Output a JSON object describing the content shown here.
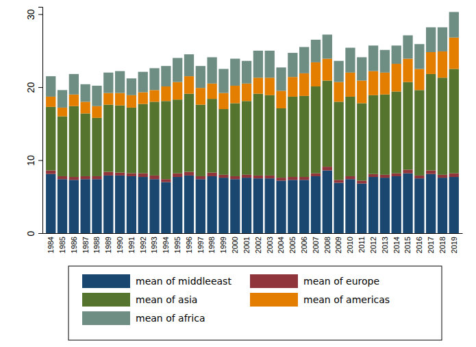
{
  "chart_data": {
    "type": "bar",
    "stacked": true,
    "grid": false,
    "legend": "bottom",
    "categories": [
      "1984",
      "1985",
      "1986",
      "1987",
      "1988",
      "1989",
      "1990",
      "1991",
      "1992",
      "1993",
      "1994",
      "1995",
      "1996",
      "1997",
      "1998",
      "1999",
      "2000",
      "2001",
      "2002",
      "2003",
      "2004",
      "2005",
      "2006",
      "2007",
      "2008",
      "2009",
      "2010",
      "2011",
      "2012",
      "2013",
      "2014",
      "2015",
      "2016",
      "2017",
      "2018",
      "2019"
    ],
    "ylim": [
      0,
      31
    ],
    "yticks": [
      0,
      10,
      20,
      30
    ],
    "series": [
      {
        "name": "mean of middleeast",
        "color": "#1a476f",
        "values": [
          8.1,
          7.4,
          7.3,
          7.4,
          7.4,
          7.9,
          7.9,
          7.8,
          7.7,
          7.4,
          7.0,
          7.7,
          7.9,
          7.4,
          7.8,
          7.6,
          7.4,
          7.6,
          7.5,
          7.5,
          7.2,
          7.3,
          7.3,
          7.8,
          8.6,
          6.9,
          7.4,
          6.8,
          7.7,
          7.6,
          7.8,
          8.2,
          7.5,
          8.1,
          7.6,
          7.7
        ]
      },
      {
        "name": "mean of europe",
        "color": "#90353b",
        "values": [
          0.5,
          0.4,
          0.4,
          0.4,
          0.4,
          0.5,
          0.4,
          0.4,
          0.5,
          0.5,
          0.4,
          0.5,
          0.5,
          0.4,
          0.5,
          0.4,
          0.4,
          0.4,
          0.4,
          0.4,
          0.4,
          0.4,
          0.4,
          0.4,
          0.5,
          0.4,
          0.4,
          0.4,
          0.4,
          0.4,
          0.4,
          0.5,
          0.4,
          0.5,
          0.4,
          0.5
        ]
      },
      {
        "name": "mean of asia",
        "color": "#55752f",
        "values": [
          8.7,
          8.2,
          9.7,
          8.6,
          8.0,
          9.2,
          9.2,
          9.0,
          9.5,
          10.1,
          10.7,
          10.1,
          10.7,
          9.8,
          10.1,
          9.0,
          10.0,
          10.1,
          11.2,
          11.0,
          9.5,
          11.0,
          11.1,
          11.9,
          11.8,
          10.7,
          10.9,
          10.6,
          10.8,
          11.0,
          11.2,
          12.0,
          11.7,
          13.2,
          13.3,
          14.3
        ]
      },
      {
        "name": "mean of americas",
        "color": "#e37e00",
        "values": [
          1.4,
          1.2,
          1.6,
          1.6,
          1.6,
          1.6,
          1.7,
          1.7,
          1.6,
          1.6,
          2.0,
          2.4,
          2.4,
          2.3,
          2.1,
          2.2,
          2.4,
          2.4,
          2.2,
          2.4,
          2.4,
          2.7,
          3.1,
          3.3,
          3.0,
          2.7,
          3.3,
          3.1,
          3.3,
          3.0,
          3.8,
          3.2,
          2.9,
          3.0,
          3.6,
          4.3
        ]
      },
      {
        "name": "mean of africa",
        "color": "#6e8e84",
        "values": [
          2.8,
          2.4,
          2.8,
          2.4,
          2.8,
          2.8,
          3.0,
          2.3,
          2.8,
          3.0,
          2.8,
          3.3,
          3.0,
          3.0,
          3.6,
          3.3,
          3.7,
          3.1,
          3.7,
          3.7,
          3.2,
          3.3,
          3.6,
          3.1,
          3.3,
          2.9,
          3.4,
          3.2,
          3.5,
          3.1,
          2.5,
          3.2,
          3.4,
          3.4,
          3.3,
          3.5
        ]
      }
    ]
  }
}
